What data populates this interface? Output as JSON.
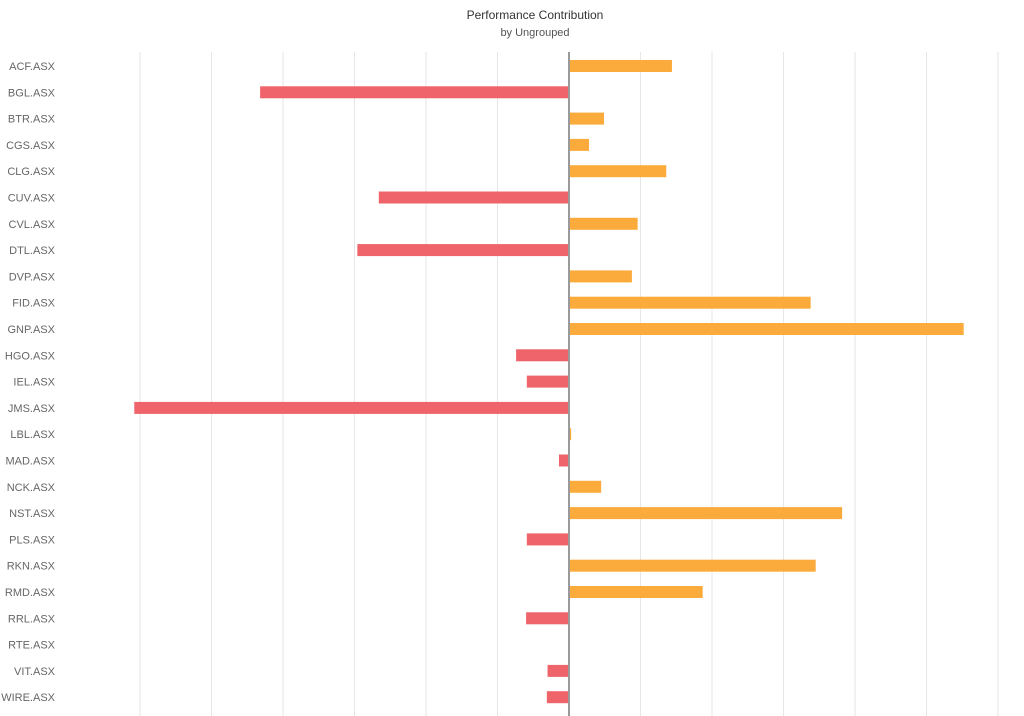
{
  "header": {
    "title": "Performance Contribution",
    "subtitle": "by Ungrouped"
  },
  "colors": {
    "positive": "#FBAB3B",
    "negative": "#EE646A",
    "grid": "#E6E6E6",
    "zero_line": "#9A9A9A",
    "label": "#666666"
  },
  "chart_data": {
    "type": "bar",
    "orientation": "horizontal",
    "title": "Performance Contribution",
    "subtitle": "by Ungrouped",
    "xlabel": "",
    "ylabel": "",
    "xlim": [
      -60,
      60
    ],
    "grid": true,
    "legend": "none",
    "categories": [
      "ACF.ASX",
      "BGL.ASX",
      "BTR.ASX",
      "CGS.ASX",
      "CLG.ASX",
      "CUV.ASX",
      "CVL.ASX",
      "DTL.ASX",
      "DVP.ASX",
      "FID.ASX",
      "GNP.ASX",
      "HGO.ASX",
      "IEL.ASX",
      "JMS.ASX",
      "LBL.ASX",
      "MAD.ASX",
      "NCK.ASX",
      "NST.ASX",
      "PLS.ASX",
      "RKN.ASX",
      "RMD.ASX",
      "RRL.ASX",
      "RTE.ASX",
      "VIT.ASX",
      "WIRE.ASX"
    ],
    "values": [
      14.4,
      -43.2,
      4.9,
      2.8,
      13.6,
      -26.6,
      9.6,
      -29.6,
      8.8,
      33.8,
      55.2,
      -7.4,
      -5.9,
      -60.8,
      0.3,
      -1.4,
      4.5,
      38.2,
      -5.9,
      34.5,
      18.7,
      -6.0,
      0.0,
      -3.0,
      -3.1
    ]
  }
}
